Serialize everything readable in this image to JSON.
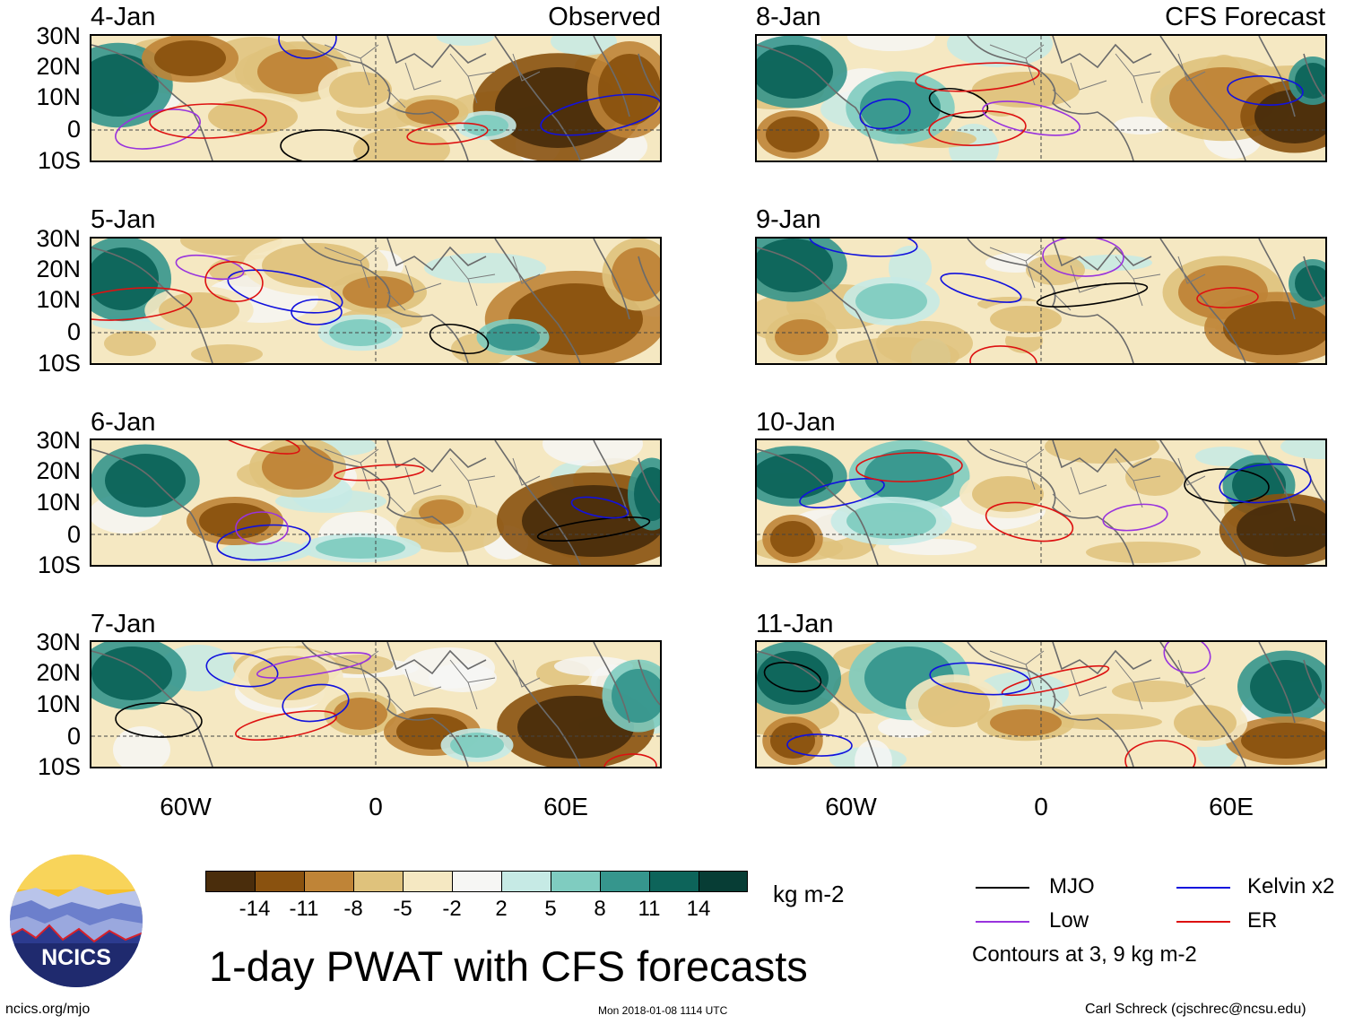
{
  "columns": [
    {
      "title": "Observed",
      "dates": [
        "4-Jan",
        "5-Jan",
        "6-Jan",
        "7-Jan"
      ]
    },
    {
      "title": "CFS Forecast",
      "dates": [
        "8-Jan",
        "9-Jan",
        "10-Jan",
        "11-Jan"
      ]
    }
  ],
  "axes": {
    "lat_labels": [
      "30N",
      "20N",
      "10N",
      "0",
      "10S"
    ],
    "lon_labels": [
      "60W",
      "0",
      "60E"
    ]
  },
  "colorbar": {
    "tick_labels": [
      "-14",
      "-11",
      "-8",
      "-5",
      "-2",
      "2",
      "5",
      "8",
      "11",
      "14"
    ],
    "colors": [
      "#4a2d0c",
      "#8a520f",
      "#bf8437",
      "#dfc27c",
      "#f5e8c2",
      "#f6f6f4",
      "#c6eae5",
      "#7fccc0",
      "#36968d",
      "#0d645a",
      "#073d35"
    ],
    "units": "kg m-2"
  },
  "legend": {
    "items": [
      {
        "label": "MJO",
        "color": "#000000"
      },
      {
        "label": "Kelvin x2",
        "color": "#1111dd"
      },
      {
        "label": "Low",
        "color": "#9933dd"
      },
      {
        "label": "ER",
        "color": "#dd1111"
      }
    ],
    "note": "Contours at 3, 9 kg m-2"
  },
  "logo_text": "NCICS",
  "main_title": "1-day PWAT with CFS forecasts",
  "footer": {
    "left": "ncics.org/mjo",
    "center": "Mon 2018-01-08 1114 UTC",
    "right": "Carl Schreck (cjschrec@ncsu.edu)"
  }
}
